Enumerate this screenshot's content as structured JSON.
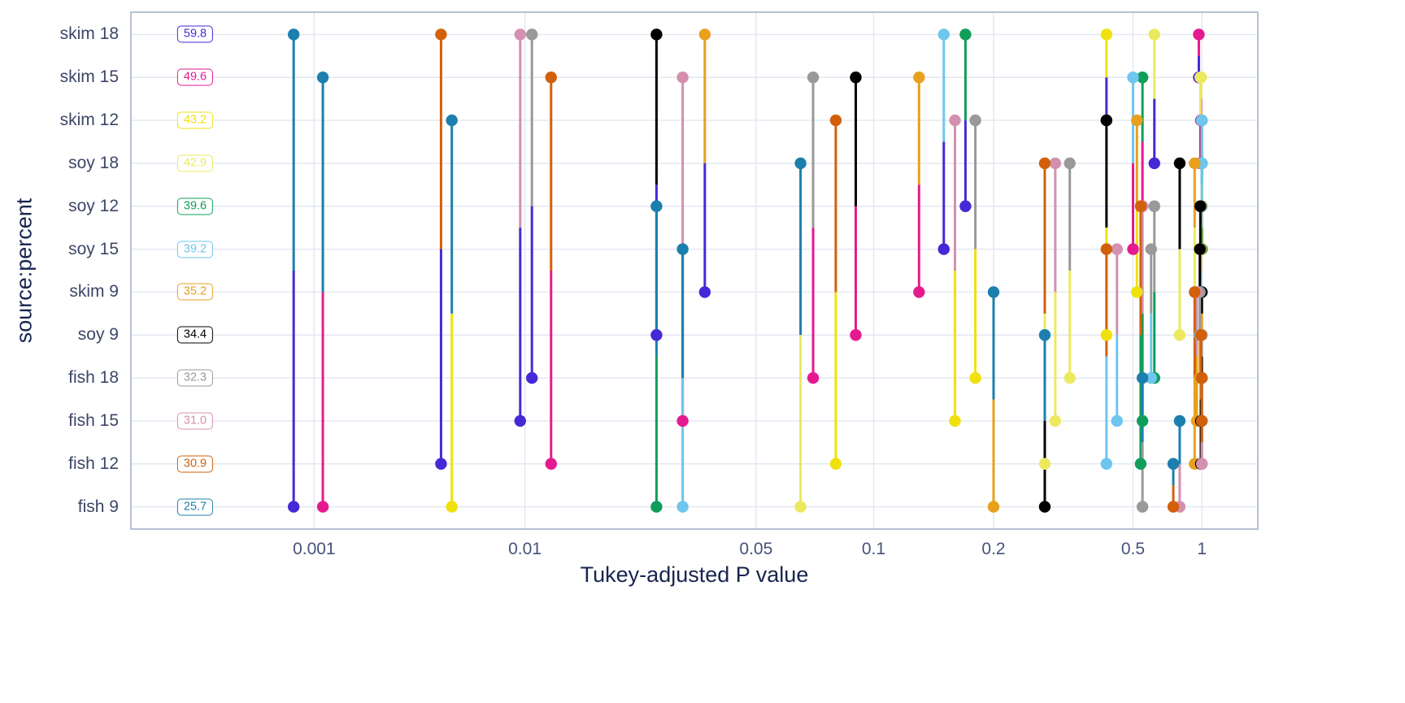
{
  "chart_data": {
    "type": "scatter",
    "variant": "pairwise-p-value-plot (pwpp, comparisons shown as vertical segments joining the two compared levels at x = adjusted p value)",
    "title": "",
    "xlabel": "Tukey-adjusted P value",
    "ylabel": "source:percent",
    "x_scale": "log-like p-value scale",
    "x_ticks": [
      0.001,
      0.01,
      0.05,
      0.1,
      0.2,
      0.5,
      1
    ],
    "grid": true,
    "style": {
      "grid_color": "#e2e7f1",
      "panel_border_color": "#b6c0d4",
      "axis_title_color": "#17254e",
      "tick_label_color": "#46527a",
      "plot_bg": "#ffffff"
    },
    "groups": [
      {
        "label": "skim 18",
        "value": "59.8",
        "color": "#4629d6"
      },
      {
        "label": "skim 15",
        "value": "49.6",
        "color": "#e51a8f"
      },
      {
        "label": "skim 12",
        "value": "43.2",
        "color": "#f0e10e"
      },
      {
        "label": "soy 18",
        "value": "42.9",
        "color": "#ece95f"
      },
      {
        "label": "soy 12",
        "value": "39.6",
        "color": "#0f9e5a"
      },
      {
        "label": "soy 15",
        "value": "39.2",
        "color": "#6ec6ee"
      },
      {
        "label": "skim 9",
        "value": "35.2",
        "color": "#e8a01d"
      },
      {
        "label": "soy 9",
        "value": "34.4",
        "color": "#000000"
      },
      {
        "label": "fish 18",
        "value": "32.3",
        "color": "#999999"
      },
      {
        "label": "fish 15",
        "value": "31.0",
        "color": "#d490ae"
      },
      {
        "label": "fish 12",
        "value": "30.9",
        "color": "#d2600a"
      },
      {
        "label": "fish 9",
        "value": "25.7",
        "color": "#1c7fae"
      }
    ],
    "comparisons": [
      {
        "a": "skim 18",
        "b": "skim 15",
        "p": 0.97
      },
      {
        "a": "skim 18",
        "b": "skim 12",
        "p": 0.42
      },
      {
        "a": "skim 18",
        "b": "soy 18",
        "p": 0.62
      },
      {
        "a": "skim 18",
        "b": "soy 12",
        "p": 0.17
      },
      {
        "a": "skim 18",
        "b": "soy 15",
        "p": 0.15
      },
      {
        "a": "skim 18",
        "b": "skim 9",
        "p": 0.035
      },
      {
        "a": "skim 18",
        "b": "soy 9",
        "p": 0.025
      },
      {
        "a": "skim 18",
        "b": "fish 18",
        "p": 0.0105
      },
      {
        "a": "skim 18",
        "b": "fish 15",
        "p": 0.0095
      },
      {
        "a": "skim 18",
        "b": "fish 12",
        "p": 0.004
      },
      {
        "a": "skim 18",
        "b": "fish 9",
        "p": 0.0008
      },
      {
        "a": "skim 15",
        "b": "skim 12",
        "p": 0.99
      },
      {
        "a": "skim 15",
        "b": "soy 18",
        "p": 0.985
      },
      {
        "a": "skim 15",
        "b": "soy 12",
        "p": 0.55
      },
      {
        "a": "skim 15",
        "b": "soy 15",
        "p": 0.5
      },
      {
        "a": "skim 15",
        "b": "skim 9",
        "p": 0.13
      },
      {
        "a": "skim 15",
        "b": "soy 9",
        "p": 0.09
      },
      {
        "a": "skim 15",
        "b": "fish 18",
        "p": 0.07
      },
      {
        "a": "skim 15",
        "b": "fish 15",
        "p": 0.03
      },
      {
        "a": "skim 15",
        "b": "fish 12",
        "p": 0.012
      },
      {
        "a": "skim 15",
        "b": "fish 9",
        "p": 0.0011
      },
      {
        "a": "skim 12",
        "b": "soy 18",
        "p": 1.0
      },
      {
        "a": "skim 12",
        "b": "soy 12",
        "p": 1.0
      },
      {
        "a": "skim 12",
        "b": "soy 15",
        "p": 1.0
      },
      {
        "a": "skim 12",
        "b": "skim 9",
        "p": 0.52
      },
      {
        "a": "skim 12",
        "b": "soy 9",
        "p": 0.42
      },
      {
        "a": "skim 12",
        "b": "fish 18",
        "p": 0.18
      },
      {
        "a": "skim 12",
        "b": "fish 15",
        "p": 0.16
      },
      {
        "a": "skim 12",
        "b": "fish 12",
        "p": 0.08
      },
      {
        "a": "skim 12",
        "b": "fish 9",
        "p": 0.0045
      },
      {
        "a": "soy 18",
        "b": "soy 12",
        "p": 1.0
      },
      {
        "a": "soy 18",
        "b": "soy 15",
        "p": 1.0
      },
      {
        "a": "soy 18",
        "b": "skim 9",
        "p": 0.93
      },
      {
        "a": "soy 18",
        "b": "soy 9",
        "p": 0.8
      },
      {
        "a": "soy 18",
        "b": "fish 18",
        "p": 0.33
      },
      {
        "a": "soy 18",
        "b": "fish 15",
        "p": 0.3
      },
      {
        "a": "soy 18",
        "b": "fish 12",
        "p": 0.28
      },
      {
        "a": "soy 18",
        "b": "fish 9",
        "p": 0.065
      },
      {
        "a": "soy 12",
        "b": "soy 15",
        "p": 1.0
      },
      {
        "a": "soy 12",
        "b": "skim 9",
        "p": 0.99
      },
      {
        "a": "soy 12",
        "b": "soy 9",
        "p": 0.985
      },
      {
        "a": "soy 12",
        "b": "fish 18",
        "p": 0.62
      },
      {
        "a": "soy 12",
        "b": "fish 15",
        "p": 0.55
      },
      {
        "a": "soy 12",
        "b": "fish 12",
        "p": 0.54
      },
      {
        "a": "soy 12",
        "b": "fish 9",
        "p": 0.025
      },
      {
        "a": "soy 15",
        "b": "skim 9",
        "p": 0.99
      },
      {
        "a": "soy 15",
        "b": "soy 9",
        "p": 0.98
      },
      {
        "a": "soy 15",
        "b": "fish 18",
        "p": 0.6
      },
      {
        "a": "soy 15",
        "b": "fish 15",
        "p": 0.45
      },
      {
        "a": "soy 15",
        "b": "fish 12",
        "p": 0.42
      },
      {
        "a": "soy 15",
        "b": "fish 9",
        "p": 0.03
      },
      {
        "a": "skim 9",
        "b": "soy 9",
        "p": 1.0
      },
      {
        "a": "skim 9",
        "b": "fish 18",
        "p": 0.98
      },
      {
        "a": "skim 9",
        "b": "fish 15",
        "p": 0.95
      },
      {
        "a": "skim 9",
        "b": "fish 12",
        "p": 0.93
      },
      {
        "a": "skim 9",
        "b": "fish 9",
        "p": 0.2
      },
      {
        "a": "soy 9",
        "b": "fish 18",
        "p": 0.999
      },
      {
        "a": "soy 9",
        "b": "fish 15",
        "p": 0.99
      },
      {
        "a": "soy 9",
        "b": "fish 12",
        "p": 0.99
      },
      {
        "a": "soy 9",
        "b": "fish 9",
        "p": 0.28
      },
      {
        "a": "fish 18",
        "b": "fish 15",
        "p": 1.0
      },
      {
        "a": "fish 18",
        "b": "fish 12",
        "p": 1.0
      },
      {
        "a": "fish 18",
        "b": "fish 9",
        "p": 0.55
      },
      {
        "a": "fish 15",
        "b": "fish 12",
        "p": 1.0
      },
      {
        "a": "fish 15",
        "b": "fish 9",
        "p": 0.8
      },
      {
        "a": "fish 12",
        "b": "fish 9",
        "p": 0.75
      }
    ]
  }
}
